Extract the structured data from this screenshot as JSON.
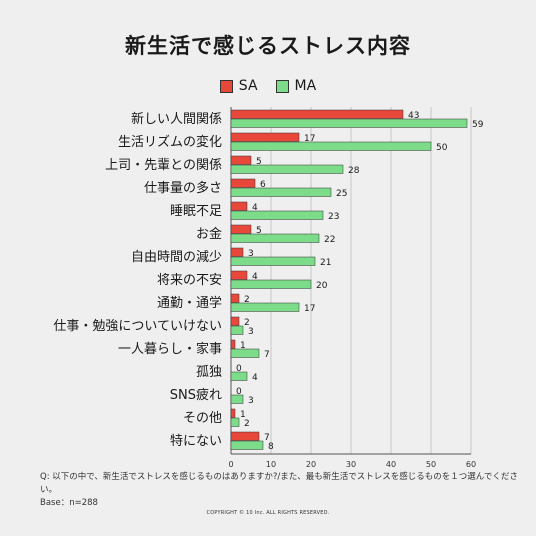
{
  "title": "新生活で感じるストレス内容",
  "footnote": {
    "question": "Q: 以下の中で、新生活でストレスを感じるものはありますか?/また、最も新生活でストレスを感じるものを１つ選んでください。",
    "base": "Base：n=288"
  },
  "copyright": "COPYRIGHT © 10 Inc. ALL RIGHTS RESERVED.",
  "chart_data": {
    "type": "bar",
    "orientation": "horizontal",
    "title": "新生活で感じるストレス内容",
    "categories": [
      "新しい人間関係",
      "生活リズムの変化",
      "上司・先輩との関係",
      "仕事量の多さ",
      "睡眠不足",
      "お金",
      "自由時間の減少",
      "将来の不安",
      "通勤・通学",
      "仕事・勉強についていけない",
      "一人暮らし・家事",
      "孤独",
      "SNS疲れ",
      "その他",
      "特にない"
    ],
    "series": [
      {
        "name": "SA",
        "color": "#e8483a",
        "values": [
          43,
          17,
          5,
          6,
          4,
          5,
          3,
          4,
          2,
          2,
          1,
          0,
          0,
          1,
          7
        ]
      },
      {
        "name": "MA",
        "color": "#7ddc8a",
        "values": [
          59,
          50,
          28,
          25,
          23,
          22,
          21,
          20,
          17,
          3,
          7,
          4,
          3,
          2,
          8
        ]
      }
    ],
    "xlim": [
      0,
      60
    ],
    "xticks": [
      0,
      10,
      20,
      30,
      40,
      50,
      60
    ],
    "grid": true,
    "legend_position": "top-center"
  }
}
